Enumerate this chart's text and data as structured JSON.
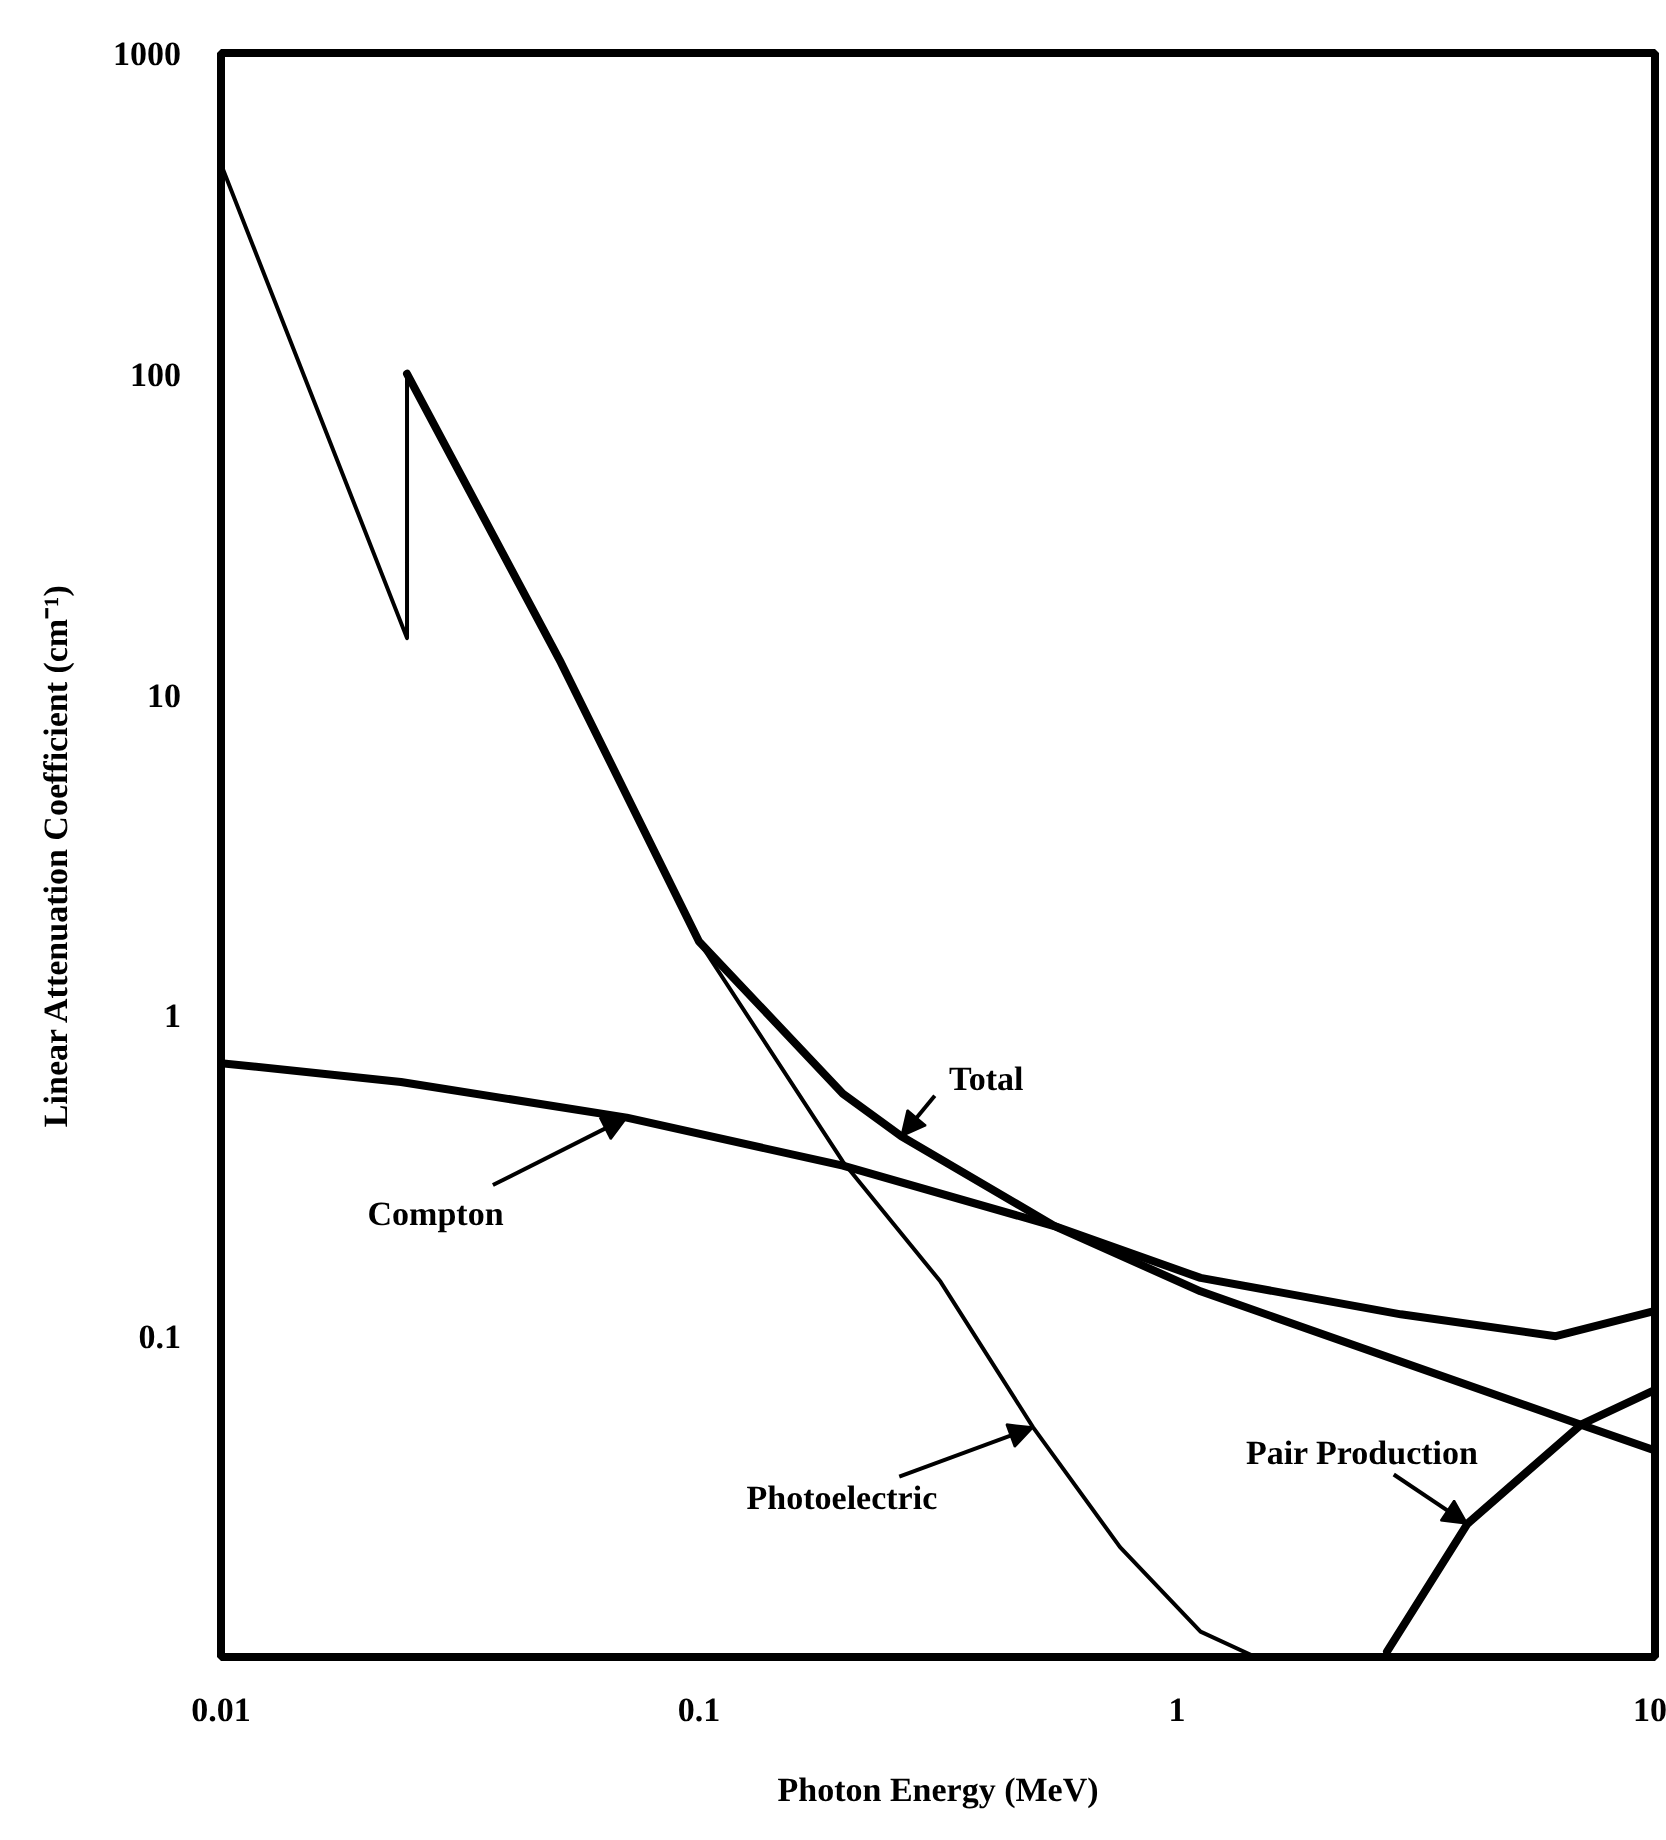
{
  "chart_data": {
    "type": "line",
    "xlabel": "Photon Energy (MeV)",
    "ylabel": "Linear Attenuation Coefficient (cm⁻¹)",
    "log": "xy",
    "xlim": [
      0.01,
      10
    ],
    "ylim": [
      0.01,
      1000
    ],
    "xticks": [
      0.01,
      0.1,
      1,
      10
    ],
    "yticks": [
      0.1,
      1,
      10,
      100,
      1000
    ],
    "line_style": "solid",
    "series": [
      {
        "color": "#000000",
        "x": [
          0.0245,
          0.0514,
          0.1,
          0.2,
          0.265,
          0.556,
          1.12,
          2.94,
          6.2,
          10
        ],
        "values": [
          100,
          12.6,
          1.7,
          0.57,
          0.42,
          0.22,
          0.152,
          0.117,
          0.1,
          0.12
        ]
      },
      {
        "color": "#000000",
        "x": [
          0.01,
          0.0245,
          0.0245,
          0.0514,
          0.1,
          0.2,
          0.32,
          0.5,
          0.76,
          1.12,
          1.46
        ],
        "values": [
          450,
          15,
          100,
          12.6,
          1.7,
          0.35,
          0.148,
          0.052,
          0.022,
          0.012,
          0.01
        ]
      },
      {
        "color": "#000000",
        "x": [
          0.01,
          0.0238,
          0.0706,
          0.2,
          0.556,
          1.12,
          7.0,
          10
        ],
        "values": [
          0.71,
          0.62,
          0.48,
          0.34,
          0.22,
          0.138,
          0.053,
          0.044
        ]
      },
      {
        "color": "#000000",
        "x": [
          2.75,
          4.05,
          7.0,
          10
        ],
        "values": [
          0.0104,
          0.026,
          0.053,
          0.068
        ]
      }
    ],
    "annotations": [
      {
        "text": "Total",
        "x": 0.265,
        "y": 0.42
      },
      {
        "text": "Photoelectric",
        "x": 0.5,
        "y": 0.052
      },
      {
        "text": "Compton",
        "x": 0.0706,
        "y": 0.48
      },
      {
        "text": "Pair Production",
        "x": 4.05,
        "y": 0.026
      }
    ]
  }
}
